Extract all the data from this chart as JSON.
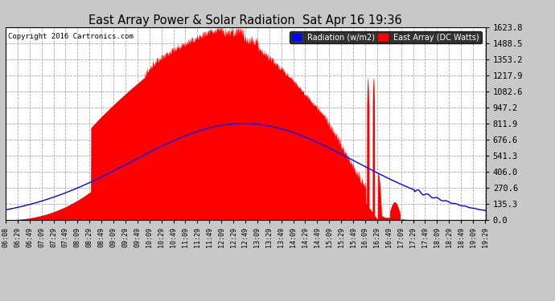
{
  "title": "East Array Power & Solar Radiation  Sat Apr 16 19:36",
  "copyright": "Copyright 2016 Cartronics.com",
  "background_color": "#c8c8c8",
  "plot_bg_color": "#ffffff",
  "grid_color": "#aaaaaa",
  "ylabel_right": [
    "0.0",
    "135.3",
    "270.6",
    "406.0",
    "541.3",
    "676.6",
    "811.9",
    "947.2",
    "1082.6",
    "1217.9",
    "1353.2",
    "1488.5",
    "1623.8"
  ],
  "ymax": 1623.8,
  "legend_radiation_label": "Radiation (w/m2)",
  "legend_east_array_label": "East Array (DC Watts)",
  "legend_radiation_color": "#0000ff",
  "legend_east_array_color": "#ff0000",
  "fill_color": "#ff0000",
  "line_color": "#0000ff",
  "x_tick_labels": [
    "06:08",
    "06:29",
    "06:49",
    "07:09",
    "07:29",
    "07:49",
    "08:09",
    "08:29",
    "08:49",
    "09:09",
    "09:29",
    "09:49",
    "10:09",
    "10:29",
    "10:49",
    "11:09",
    "11:29",
    "11:49",
    "12:09",
    "12:29",
    "12:49",
    "13:09",
    "13:29",
    "13:49",
    "14:09",
    "14:29",
    "14:49",
    "15:09",
    "15:29",
    "15:49",
    "16:09",
    "16:29",
    "16:49",
    "17:09",
    "17:29",
    "17:49",
    "18:09",
    "18:29",
    "18:49",
    "19:09",
    "19:29"
  ]
}
